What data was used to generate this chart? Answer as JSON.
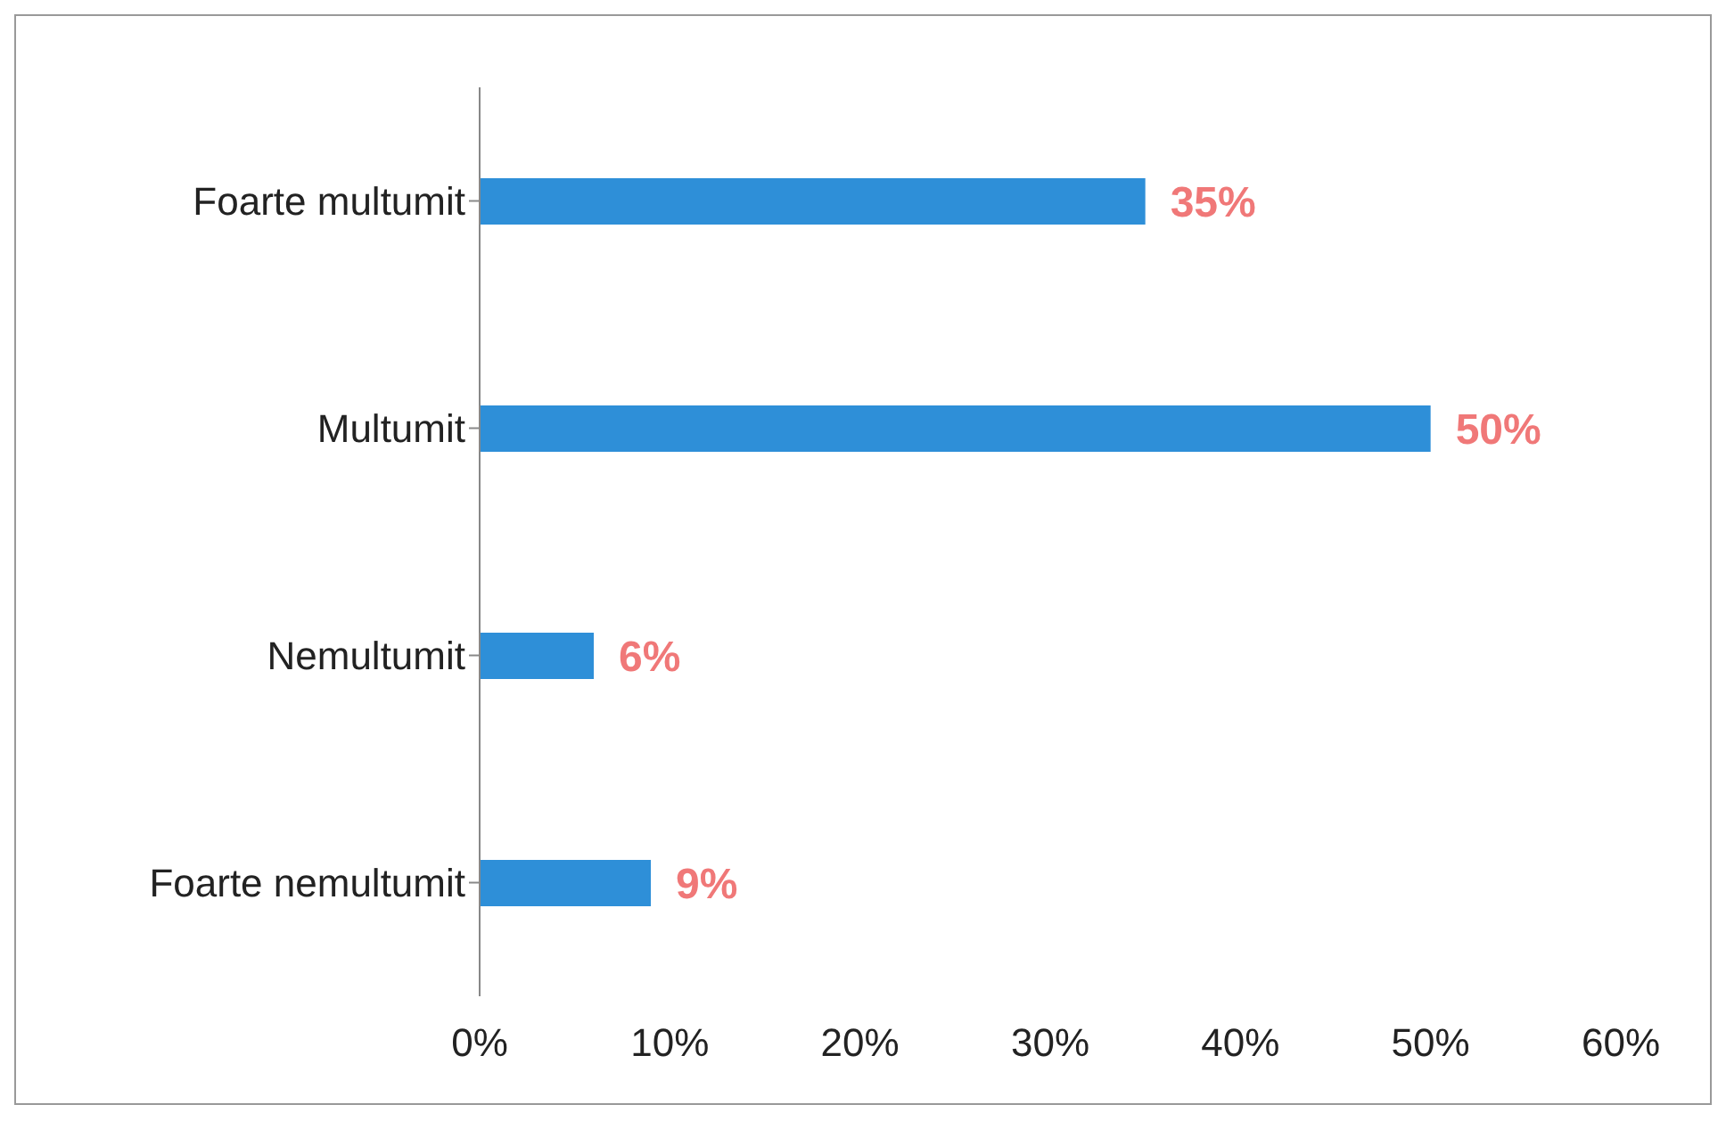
{
  "chart_data": {
    "type": "bar",
    "orientation": "horizontal",
    "categories": [
      "Foarte multumit",
      "Multumit",
      "Nemultumit",
      "Foarte nemultumit"
    ],
    "values": [
      35,
      50,
      6,
      9
    ],
    "color": "#2e8fd8",
    "value_labels": [
      "35%",
      "50%",
      "6%",
      "9%"
    ],
    "xlim": [
      0,
      60
    ],
    "xticks": [
      {
        "value": 0,
        "label": "0%"
      },
      {
        "value": 10,
        "label": "10%"
      },
      {
        "value": 20,
        "label": "20%"
      },
      {
        "value": 30,
        "label": "30%"
      },
      {
        "value": 40,
        "label": "40%"
      },
      {
        "value": 50,
        "label": "50%"
      },
      {
        "value": 60,
        "label": "60%"
      }
    ],
    "grid": false,
    "legend": false
  }
}
